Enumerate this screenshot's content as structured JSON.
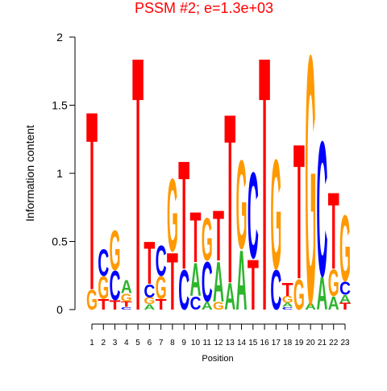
{
  "chart_data": {
    "type": "logo",
    "title": "PSSM #2; e=1.3e+03",
    "title_color": "#ff0000",
    "xlabel": "Position",
    "ylabel": "Information content",
    "categories": [
      "1",
      "2",
      "3",
      "4",
      "5",
      "6",
      "7",
      "8",
      "9",
      "10",
      "11",
      "12",
      "13",
      "14",
      "15",
      "16",
      "17",
      "18",
      "19",
      "20",
      "21",
      "22",
      "23"
    ],
    "ylim": [
      0,
      2
    ],
    "yticks": [
      0,
      0.5,
      1,
      1.5,
      2
    ],
    "series": [
      {
        "name": "A",
        "color": "#2db52d",
        "values": [
          0,
          0,
          0,
          0.1,
          0,
          0.04,
          0,
          0,
          0,
          0.25,
          0.06,
          0.3,
          0.2,
          0.45,
          0,
          0,
          0,
          0.03,
          0,
          0.05,
          0.25,
          0.1,
          0.06
        ]
      },
      {
        "name": "C",
        "color": "#0000ff",
        "values": [
          0,
          0.2,
          0.22,
          0.02,
          0,
          0.1,
          0.23,
          0,
          0.3,
          0.1,
          0.3,
          0,
          0,
          0,
          0.65,
          0,
          0.3,
          0.02,
          0,
          0,
          1.02,
          0,
          0.1
        ]
      },
      {
        "name": "G",
        "color": "#ff9900",
        "values": [
          0.15,
          0.17,
          0.3,
          0.06,
          0,
          0.05,
          0.17,
          0.55,
          0,
          0,
          0.32,
          0.06,
          0,
          0.67,
          0,
          0,
          0.83,
          0.05,
          0.23,
          1.88,
          0,
          0.2,
          0.5
        ]
      },
      {
        "name": "T",
        "color": "#ff0000",
        "values": [
          1.35,
          0.08,
          0.07,
          0.04,
          1.92,
          0.32,
          0.08,
          0.43,
          0.82,
          0.38,
          0,
          0.38,
          1.28,
          0,
          0.38,
          1.92,
          0,
          0.1,
          1.02,
          0,
          0,
          0.58,
          0.05
        ]
      }
    ]
  }
}
